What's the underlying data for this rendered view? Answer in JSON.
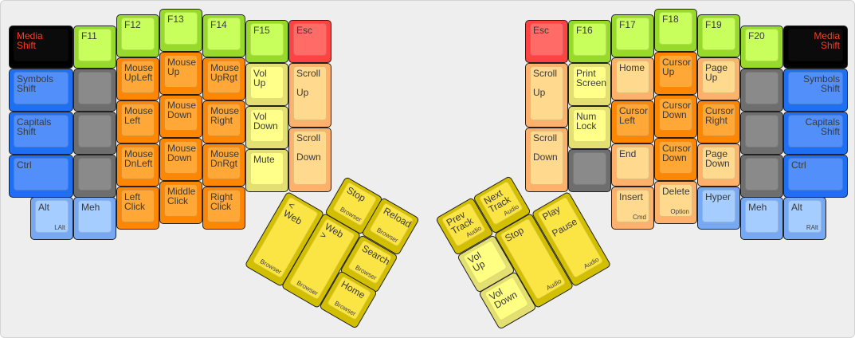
{
  "colors": {
    "black": "#000000",
    "blue": "#1f6ff2",
    "ltblue": "#a6cdff",
    "gray": "#8a8a8a",
    "green": "#c9ff5c",
    "orange": "#ff8600",
    "peach": "#ffd98e",
    "ltyellow": "#ffff8a",
    "red": "#ff4242",
    "yellow": "#fbe545",
    "legend_red": "#ff3b22"
  },
  "left": {
    "keys": [
      {
        "label": "Media\nShift",
        "color": "black"
      },
      {
        "label": "Symbols\nShift",
        "color": "blue"
      },
      {
        "label": "Capitals\nShift",
        "color": "blue"
      },
      {
        "label": "Ctrl",
        "color": "blue"
      },
      {
        "label": "Alt",
        "sub": "LAlt",
        "color": "ltblue"
      },
      {
        "label": "F11",
        "color": "green"
      },
      {
        "label": "",
        "color": "gray"
      },
      {
        "label": "",
        "color": "gray"
      },
      {
        "label": "",
        "color": "gray"
      },
      {
        "label": "Meh",
        "color": "ltblue"
      },
      {
        "label": "F12",
        "color": "green"
      },
      {
        "label": "Mouse\nUpLeft",
        "color": "orange"
      },
      {
        "label": "Mouse\nLeft",
        "color": "orange"
      },
      {
        "label": "Mouse\nDnLeft",
        "color": "orange"
      },
      {
        "label": "Left\nClick",
        "color": "orange"
      },
      {
        "label": "F13",
        "color": "green"
      },
      {
        "label": "Mouse\nUp",
        "color": "orange"
      },
      {
        "label": "Mouse\nDown",
        "color": "orange"
      },
      {
        "label": "Mouse\nDown",
        "color": "orange"
      },
      {
        "label": "Middle\nClick",
        "color": "orange"
      },
      {
        "label": "F14",
        "color": "green"
      },
      {
        "label": "Mouse\nUpRgt",
        "color": "orange"
      },
      {
        "label": "Mouse\nRight",
        "color": "orange"
      },
      {
        "label": "Mouse\nDnRgt",
        "color": "orange"
      },
      {
        "label": "Right\nClick",
        "color": "orange"
      },
      {
        "label": "F15",
        "color": "green"
      },
      {
        "label": "Vol\nUp",
        "color": "ltyellow"
      },
      {
        "label": "Vol\nDown",
        "color": "ltyellow"
      },
      {
        "label": "Mute",
        "color": "ltyellow"
      },
      {
        "label": "Esc",
        "color": "red"
      },
      {
        "label": "Scroll\n\nUp",
        "color": "peach"
      },
      {
        "label": "Scroll\n\nDown",
        "color": "peach"
      },
      {
        "label": "< Web",
        "sub": "Browser",
        "color": "yellow"
      },
      {
        "label": "Web >",
        "sub": "Browser",
        "color": "yellow"
      },
      {
        "label": "Stop",
        "sub": "Browser",
        "color": "yellow"
      },
      {
        "label": "Reload",
        "sub": "Browser",
        "color": "yellow"
      },
      {
        "label": "Search",
        "sub": "Browser",
        "color": "yellow"
      },
      {
        "label": "Home",
        "sub": "Browser",
        "color": "yellow"
      }
    ]
  },
  "right": {
    "keys": [
      {
        "label": "Esc",
        "color": "red"
      },
      {
        "label": "Scroll\n\nUp",
        "color": "peach"
      },
      {
        "label": "Scroll\n\nDown",
        "color": "peach"
      },
      {
        "label": "F16",
        "color": "green"
      },
      {
        "label": "Print\nScreen",
        "color": "ltyellow"
      },
      {
        "label": "Num\nLock",
        "color": "ltyellow"
      },
      {
        "label": "",
        "color": "gray"
      },
      {
        "label": "F17",
        "color": "green"
      },
      {
        "label": "Home",
        "color": "peach"
      },
      {
        "label": "Cursor\nLeft",
        "color": "orange"
      },
      {
        "label": "End",
        "color": "peach"
      },
      {
        "label": "Insert",
        "sub": "Cmd",
        "color": "peach"
      },
      {
        "label": "F18",
        "color": "green"
      },
      {
        "label": "Cursor\nUp",
        "color": "orange"
      },
      {
        "label": "Cursor\nDown",
        "color": "orange"
      },
      {
        "label": "Cursor\nDown",
        "color": "orange"
      },
      {
        "label": "Delete",
        "sub": "Option",
        "color": "peach"
      },
      {
        "label": "F19",
        "color": "green"
      },
      {
        "label": "Page\nUp",
        "color": "peach"
      },
      {
        "label": "Cursor\nRight",
        "color": "orange"
      },
      {
        "label": "Page\nDown",
        "color": "peach"
      },
      {
        "label": "Hyper",
        "color": "ltblue"
      },
      {
        "label": "F20",
        "color": "green"
      },
      {
        "label": "",
        "color": "gray"
      },
      {
        "label": "",
        "color": "gray"
      },
      {
        "label": "",
        "color": "gray"
      },
      {
        "label": "Meh",
        "color": "ltblue"
      },
      {
        "label": "Media\nShift",
        "color": "black",
        "align": "right"
      },
      {
        "label": "Symbols\nShift",
        "color": "blue",
        "align": "right"
      },
      {
        "label": "Capitals\nShift",
        "color": "blue",
        "align": "right"
      },
      {
        "label": "Ctrl",
        "color": "blue"
      },
      {
        "label": "Alt",
        "sub": "RAlt",
        "color": "ltblue"
      },
      {
        "label": "Prev\nTrack",
        "sub": "Audio",
        "color": "yellow"
      },
      {
        "label": "Next\nTrack",
        "sub": "Audio",
        "color": "yellow"
      },
      {
        "label": "Vol\nUp",
        "color": "tyellow"
      },
      {
        "label": "Vol\nDown",
        "color": "tyellow"
      },
      {
        "label": "Stop",
        "sub": "Audio",
        "color": "yellow"
      },
      {
        "label": "Play\n\nPause",
        "sub": "Audio",
        "color": "yellow"
      }
    ]
  }
}
